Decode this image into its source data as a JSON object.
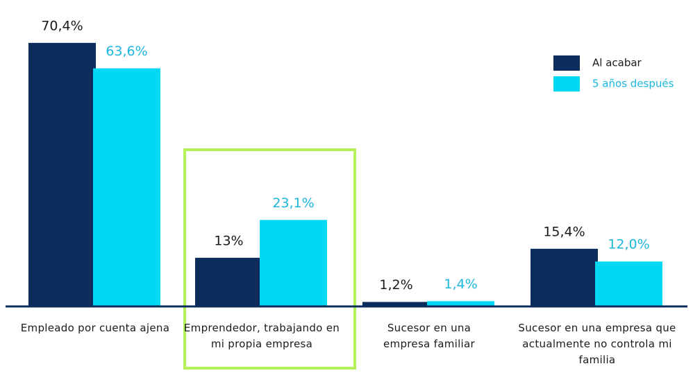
{
  "chart_data": {
    "type": "bar",
    "categories": [
      "Empleado por cuenta ajena",
      "Emprendedor, trabajando en mi propia empresa",
      "Sucesor en una empresa familiar",
      "Sucesor en una empresa que actualmente no controla mi familia"
    ],
    "series": [
      {
        "name": "Al acabar",
        "color": "#0b2d5b",
        "label_color": "#1a1a1a",
        "values": [
          70.4,
          13,
          1.2,
          15.4
        ],
        "value_labels": [
          "70,4%",
          "13%",
          "1,2%",
          "15,4%"
        ]
      },
      {
        "name": "5 años después",
        "color": "#00d8f5",
        "label_color": "#1bb6dd",
        "values": [
          63.6,
          23.1,
          1.4,
          12.0
        ],
        "value_labels": [
          "63,6%",
          "23,1%",
          "1,4%",
          "12,0%"
        ]
      }
    ],
    "ylim": [
      0,
      75
    ],
    "legend": "top-right"
  }
}
